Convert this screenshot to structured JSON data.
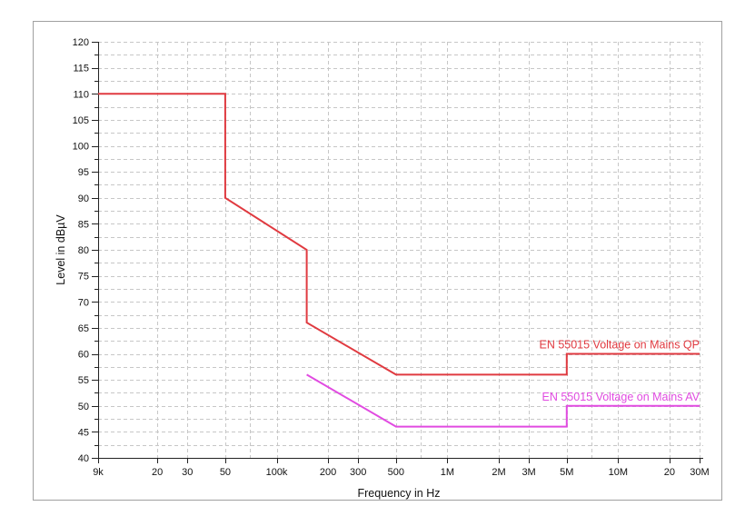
{
  "window": {
    "background": "#ffffff",
    "panel_border": "#a0a0a0"
  },
  "chart_data": {
    "type": "line",
    "title": "",
    "x_axis": {
      "label": "Frequency in Hz",
      "scale": "log",
      "min": 9000,
      "max": 30000000,
      "ticks": [
        {
          "value": 9000,
          "label": "9k"
        },
        {
          "value": 20000,
          "label": "20"
        },
        {
          "value": 30000,
          "label": "30"
        },
        {
          "value": 50000,
          "label": "50"
        },
        {
          "value": 100000,
          "label": "100k"
        },
        {
          "value": 200000,
          "label": "200"
        },
        {
          "value": 300000,
          "label": "300"
        },
        {
          "value": 500000,
          "label": "500"
        },
        {
          "value": 1000000,
          "label": "1M"
        },
        {
          "value": 2000000,
          "label": "2M"
        },
        {
          "value": 3000000,
          "label": "3M"
        },
        {
          "value": 5000000,
          "label": "5M"
        },
        {
          "value": 10000000,
          "label": "10M"
        },
        {
          "value": 20000000,
          "label": "20"
        },
        {
          "value": 30000000,
          "label": "30M"
        }
      ]
    },
    "y_axis": {
      "label": "Level in dBµV",
      "min": 40,
      "max": 120,
      "tick_step": 5,
      "grid_step": 2.5
    },
    "grid": {
      "color": "#c7c7c7",
      "style": "dashed",
      "x_values": [
        20000,
        30000,
        50000,
        70000,
        100000,
        200000,
        300000,
        500000,
        700000,
        1000000,
        2000000,
        3000000,
        5000000,
        7000000,
        10000000,
        20000000,
        30000000
      ]
    },
    "axis_color": "#222222",
    "series": [
      {
        "name": "EN 55015 Voltage on Mains QP",
        "color": "#e03a40",
        "inline_label": "EN 55015 Voltage on Mains QP",
        "points": [
          [
            9000,
            110
          ],
          [
            50000,
            110
          ],
          [
            50000,
            90
          ],
          [
            150000,
            80
          ],
          [
            150000,
            66
          ],
          [
            500000,
            56
          ],
          [
            5000000,
            56
          ],
          [
            5000000,
            60
          ],
          [
            30000000,
            60
          ]
        ]
      },
      {
        "name": "EN 55015 Voltage on Mains AV",
        "color": "#e14be1",
        "inline_label": "EN 55015 Voltage on Mains AV",
        "points": [
          [
            150000,
            56
          ],
          [
            500000,
            46
          ],
          [
            5000000,
            46
          ],
          [
            5000000,
            50
          ],
          [
            30000000,
            50
          ]
        ]
      }
    ],
    "legend": {
      "position": "inline-right-above-line"
    }
  }
}
